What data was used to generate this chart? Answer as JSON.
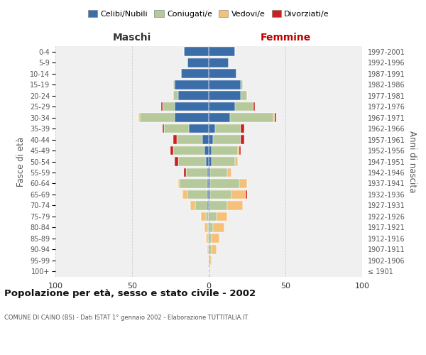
{
  "age_groups": [
    "100+",
    "95-99",
    "90-94",
    "85-89",
    "80-84",
    "75-79",
    "70-74",
    "65-69",
    "60-64",
    "55-59",
    "50-54",
    "45-49",
    "40-44",
    "35-39",
    "30-34",
    "25-29",
    "20-24",
    "15-19",
    "10-14",
    "5-9",
    "0-4"
  ],
  "birth_years": [
    "≤ 1901",
    "1902-1906",
    "1907-1911",
    "1912-1916",
    "1917-1921",
    "1922-1926",
    "1927-1931",
    "1932-1936",
    "1937-1941",
    "1942-1946",
    "1947-1951",
    "1952-1956",
    "1957-1961",
    "1962-1966",
    "1967-1971",
    "1972-1976",
    "1977-1981",
    "1982-1986",
    "1987-1991",
    "1992-1996",
    "1997-2001"
  ],
  "male": {
    "celibi": [
      0,
      0,
      0,
      0,
      0,
      0,
      1,
      1,
      1,
      1,
      2,
      3,
      4,
      13,
      22,
      22,
      20,
      22,
      18,
      14,
      16
    ],
    "coniugati": [
      0,
      0,
      0,
      1,
      1,
      2,
      8,
      13,
      18,
      14,
      18,
      20,
      17,
      16,
      23,
      8,
      3,
      1,
      0,
      0,
      0
    ],
    "vedovi": [
      0,
      0,
      1,
      1,
      2,
      3,
      3,
      3,
      1,
      0,
      0,
      0,
      0,
      0,
      1,
      0,
      0,
      0,
      0,
      0,
      0
    ],
    "divorziati": [
      0,
      0,
      0,
      0,
      0,
      0,
      0,
      0,
      0,
      1,
      2,
      2,
      2,
      1,
      0,
      1,
      0,
      0,
      0,
      0,
      0
    ]
  },
  "female": {
    "nubili": [
      0,
      0,
      0,
      0,
      0,
      0,
      0,
      1,
      1,
      1,
      2,
      2,
      3,
      4,
      14,
      17,
      21,
      21,
      18,
      13,
      17
    ],
    "coniugate": [
      0,
      1,
      2,
      2,
      3,
      5,
      12,
      14,
      19,
      11,
      15,
      17,
      18,
      17,
      28,
      12,
      4,
      1,
      0,
      0,
      0
    ],
    "vedove": [
      0,
      1,
      3,
      5,
      7,
      7,
      10,
      9,
      5,
      3,
      2,
      1,
      0,
      0,
      1,
      0,
      0,
      0,
      0,
      0,
      0
    ],
    "divorziate": [
      0,
      0,
      0,
      0,
      0,
      0,
      0,
      1,
      0,
      0,
      0,
      1,
      2,
      2,
      1,
      1,
      0,
      0,
      0,
      0,
      0
    ]
  },
  "colors": {
    "celibi": "#3b6ea8",
    "coniugati": "#b5c99a",
    "vedovi": "#f5c07a",
    "divorziati": "#cc1f1f"
  },
  "xlim": 100,
  "title": "Popolazione per età, sesso e stato civile - 2002",
  "subtitle": "COMUNE DI CAINO (BS) - Dati ISTAT 1° gennaio 2002 - Elaborazione TUTTITALIA.IT",
  "xlabel_left": "Maschi",
  "xlabel_right": "Femmine",
  "ylabel_left": "Fasce di età",
  "ylabel_right": "Anni di nascita",
  "legend_labels": [
    "Celibi/Nubili",
    "Coniugati/e",
    "Vedovi/e",
    "Divorziati/e"
  ],
  "bg_color": "#f0f0f0",
  "grid_color": "#cccccc"
}
